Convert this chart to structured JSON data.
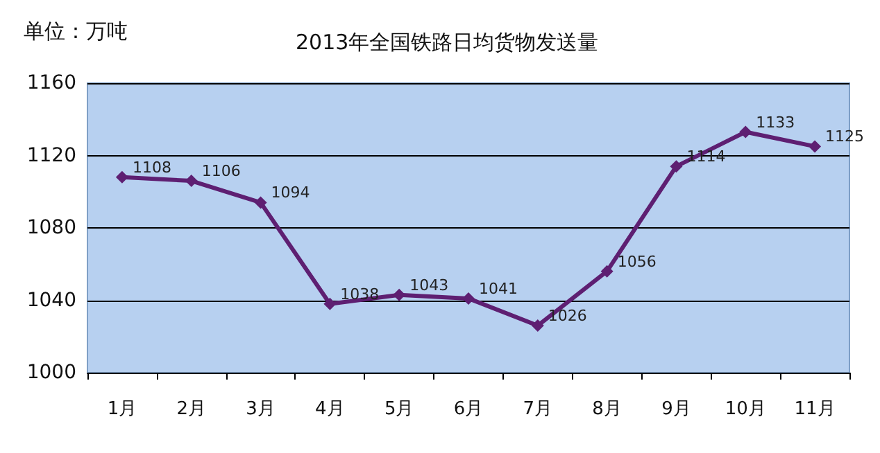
{
  "chart_data": {
    "type": "line",
    "title": "2013年全国铁路日均货物发送量",
    "ylabel": "单位：万吨",
    "categories": [
      "1月",
      "2月",
      "3月",
      "4月",
      "5月",
      "6月",
      "7月",
      "8月",
      "9月",
      "10月",
      "11月"
    ],
    "series": [
      {
        "color": "#5e1f72",
        "values": [
          1108,
          1106,
          1094,
          1038,
          1043,
          1041,
          1026,
          1056,
          1114,
          1133,
          1125
        ]
      }
    ],
    "ylim": [
      1000,
      1160
    ],
    "yticks": [
      1000,
      1040,
      1080,
      1120,
      1160
    ],
    "grid": "y",
    "marker": "diamond",
    "data_labels": true
  }
}
